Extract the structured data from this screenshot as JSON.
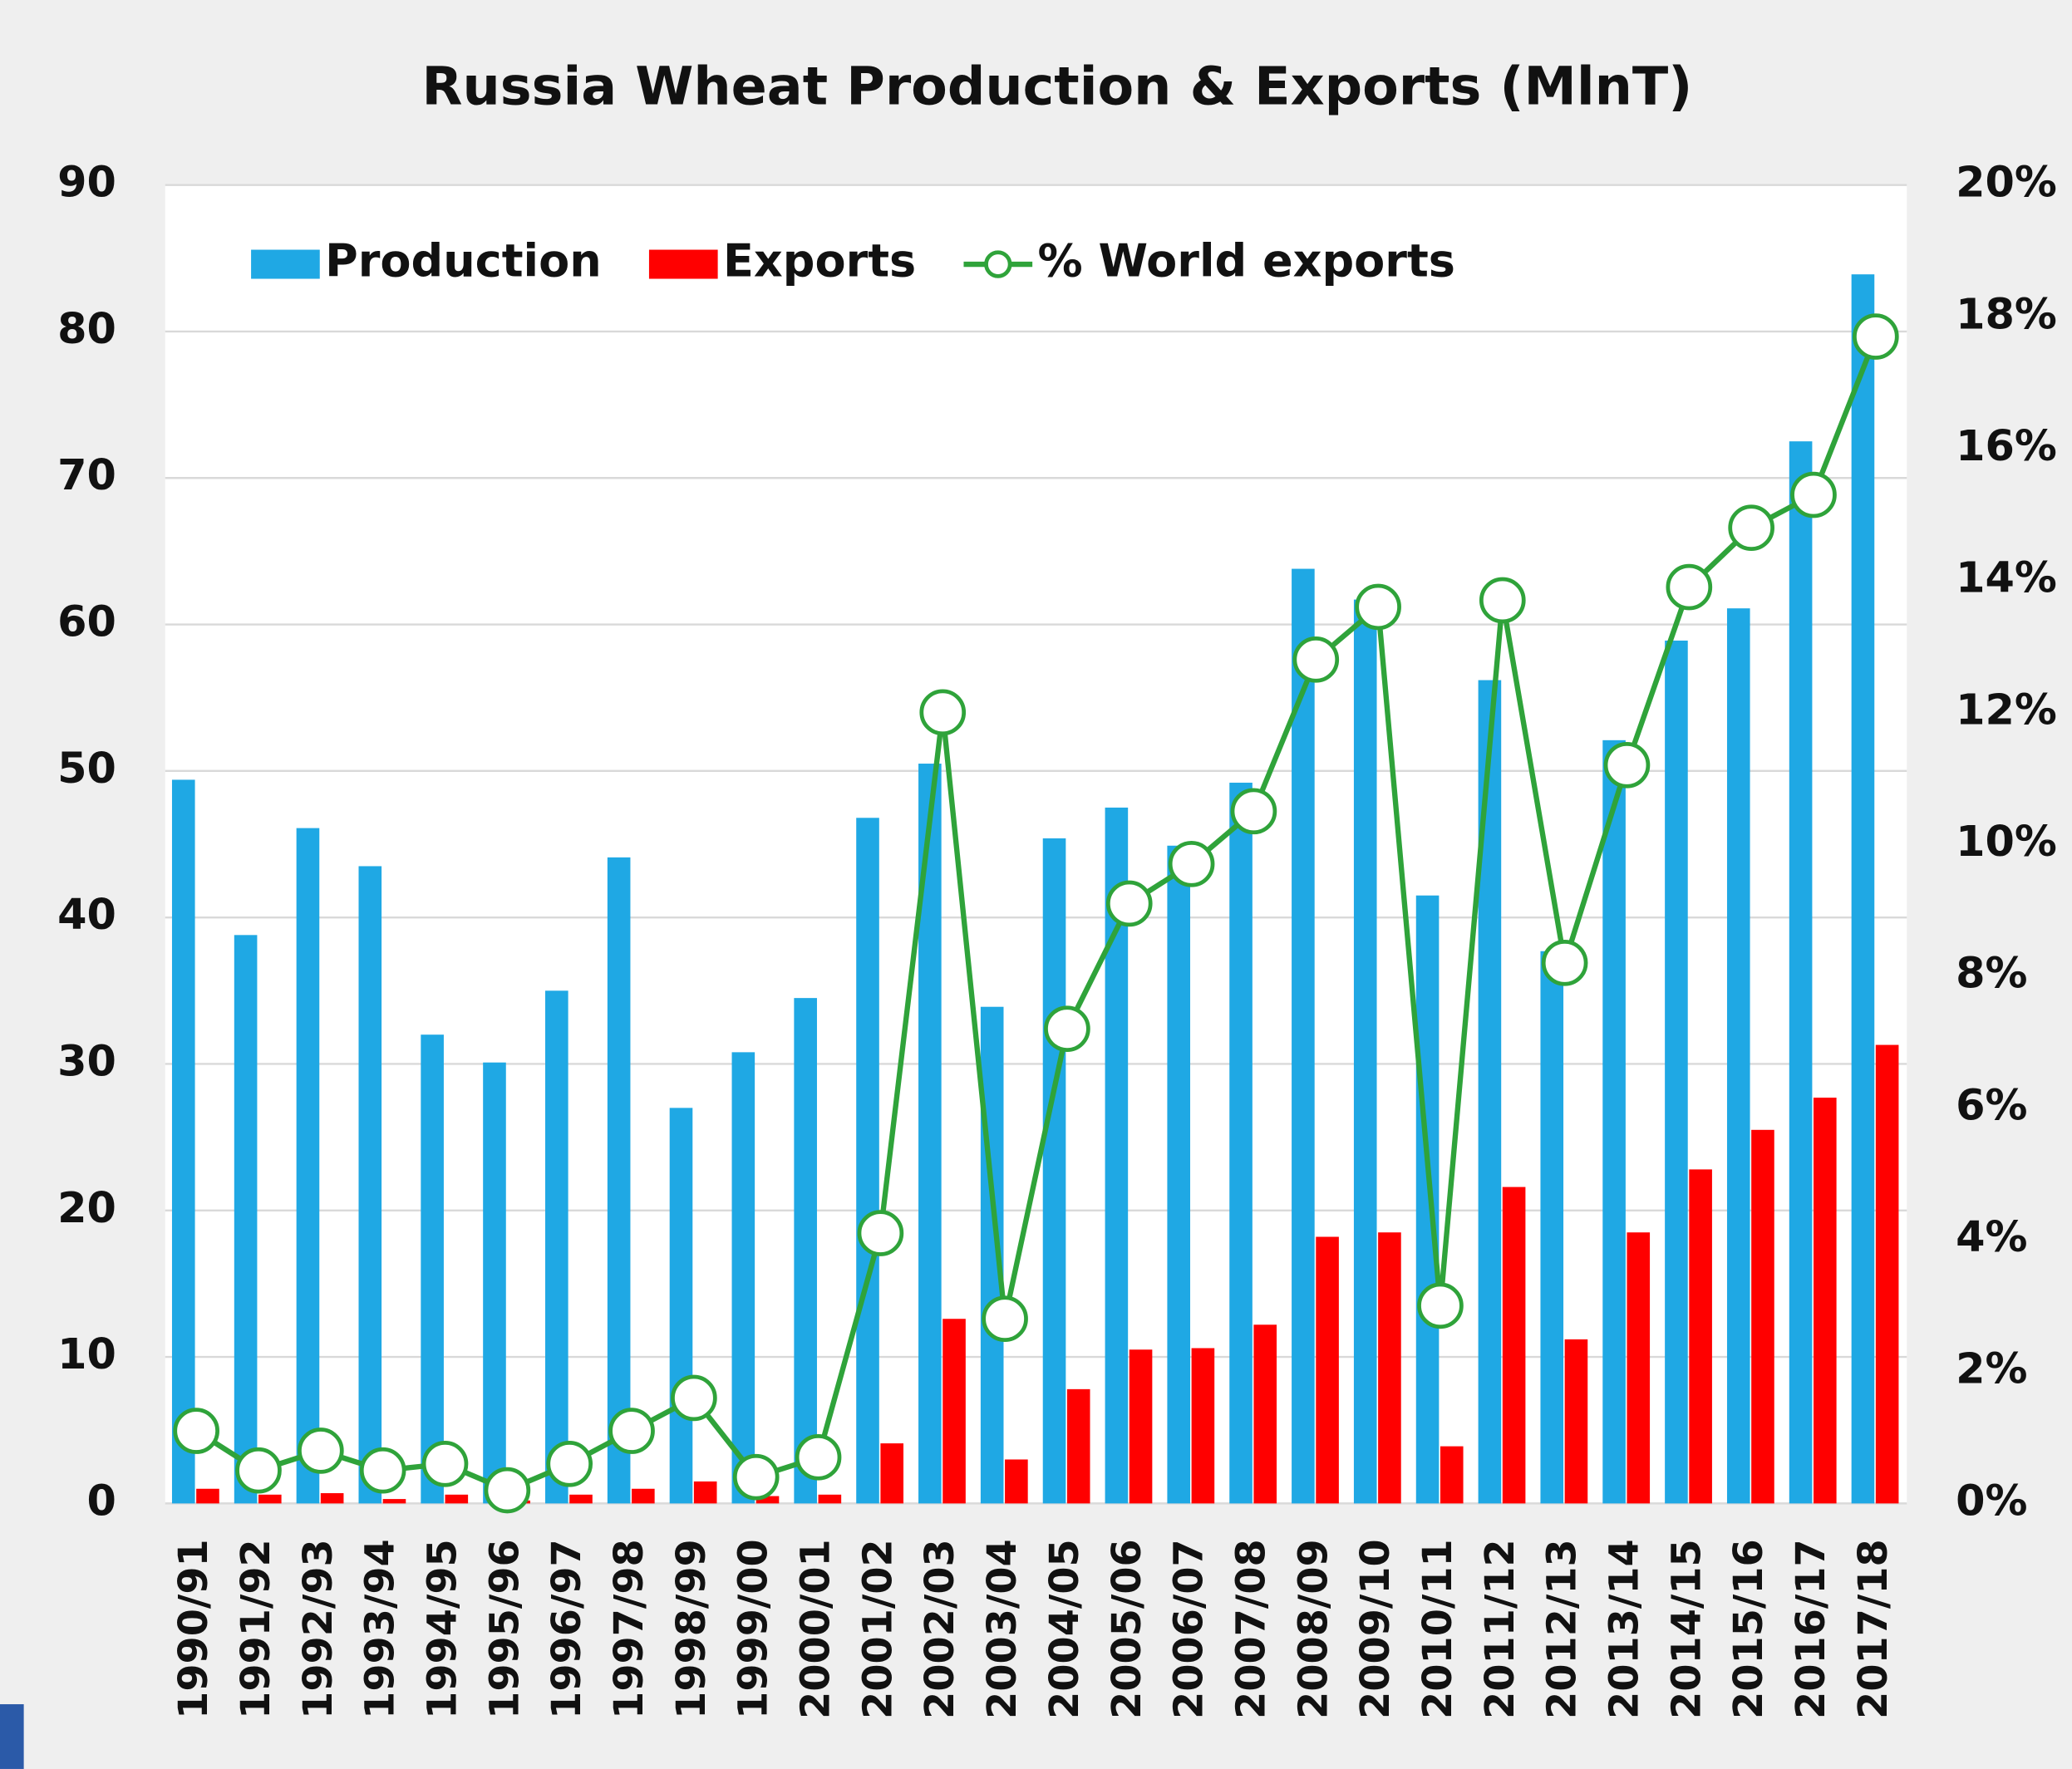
{
  "chart_data": {
    "type": "bar",
    "title": "Russia Wheat Production & Exports (MlnT)",
    "categories": [
      "1990/91",
      "1991/92",
      "1992/93",
      "1993/94",
      "1994/95",
      "1995/96",
      "1996/97",
      "1997/98",
      "1998/99",
      "1999/00",
      "2000/01",
      "2001/02",
      "2002/03",
      "2003/04",
      "2004/05",
      "2005/06",
      "2006/07",
      "2007/08",
      "2008/09",
      "2009/10",
      "2010/11",
      "2011/12",
      "2012/13",
      "2013/14",
      "2014/15",
      "2015/16",
      "2016/17",
      "2017/18"
    ],
    "series": [
      {
        "name": "Production",
        "type": "bar",
        "color": "#1fa8e4",
        "values": [
          49.4,
          38.8,
          46.1,
          43.5,
          32.0,
          30.1,
          35.0,
          44.1,
          27.0,
          30.8,
          34.5,
          46.8,
          50.5,
          33.9,
          45.4,
          47.5,
          44.9,
          49.2,
          63.8,
          61.7,
          41.5,
          56.2,
          37.7,
          52.1,
          58.9,
          61.1,
          72.5,
          83.9
        ]
      },
      {
        "name": "Exports",
        "type": "bar",
        "color": "#ff0000",
        "values": [
          1.0,
          0.6,
          0.7,
          0.3,
          0.6,
          0.2,
          0.6,
          1.0,
          1.5,
          0.5,
          0.6,
          4.1,
          12.6,
          3.0,
          7.8,
          10.5,
          10.6,
          12.2,
          18.2,
          18.5,
          3.9,
          21.6,
          11.2,
          18.5,
          22.8,
          25.5,
          27.7,
          31.3
        ]
      },
      {
        "name": "% World exports",
        "type": "line",
        "axis": "y2",
        "color": "#2fa33a",
        "values": [
          1.1,
          0.5,
          0.8,
          0.5,
          0.6,
          0.2,
          0.6,
          1.1,
          1.6,
          0.4,
          0.7,
          4.1,
          12.0,
          2.8,
          7.2,
          9.1,
          9.7,
          10.5,
          12.8,
          13.6,
          3.0,
          13.7,
          8.2,
          11.2,
          13.9,
          14.8,
          15.3,
          17.7
        ]
      }
    ],
    "ylim": [
      0,
      90
    ],
    "yticks": [
      0,
      10,
      20,
      30,
      40,
      50,
      60,
      70,
      80,
      90
    ],
    "y2lim": [
      0,
      20
    ],
    "y2ticks": [
      {
        "value": 0,
        "label": "0%"
      },
      {
        "value": 2,
        "label": "2%"
      },
      {
        "value": 4,
        "label": "4%"
      },
      {
        "value": 6,
        "label": "6%"
      },
      {
        "value": 8,
        "label": "8%"
      },
      {
        "value": 10,
        "label": "10%"
      },
      {
        "value": 12,
        "label": "12%"
      },
      {
        "value": 14,
        "label": "14%"
      },
      {
        "value": 16,
        "label": "16%"
      },
      {
        "value": 18,
        "label": "18%"
      },
      {
        "value": 20,
        "label": "20%"
      }
    ],
    "grid": true,
    "legend": "top"
  }
}
